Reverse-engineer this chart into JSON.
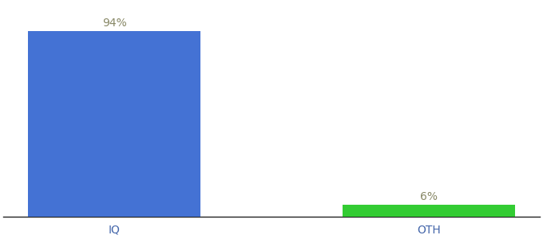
{
  "categories": [
    "IQ",
    "OTH"
  ],
  "values": [
    94,
    6
  ],
  "bar_colors": [
    "#4472d4",
    "#33cc33"
  ],
  "label_texts": [
    "94%",
    "6%"
  ],
  "background_color": "#ffffff",
  "text_color": "#888866",
  "tick_color": "#4466aa",
  "ylim": [
    0,
    108
  ],
  "bar_width": 0.55,
  "label_fontsize": 10,
  "tick_fontsize": 10,
  "figsize": [
    6.8,
    3.0
  ],
  "dpi": 100
}
